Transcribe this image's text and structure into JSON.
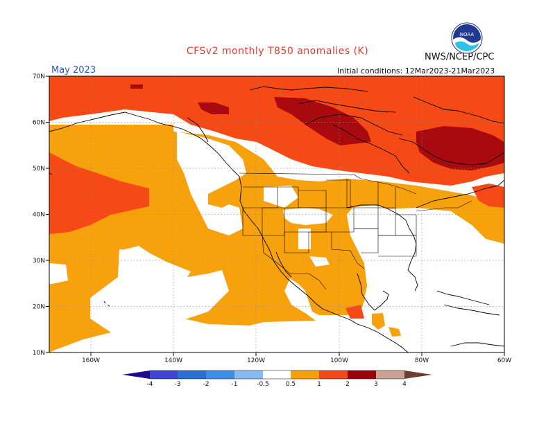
{
  "title": "CFSv2 monthly T850 anomalies (K)",
  "org": "NWS/NCEP/CPC",
  "valid_month": "May 2023",
  "initial_conditions": "Initial conditions: 12Mar2023-21Mar2023",
  "logo_text": "NOAA",
  "axes": {
    "lat_labels": [
      "70N",
      "60N",
      "50N",
      "40N",
      "30N",
      "20N",
      "10N"
    ],
    "lon_labels": [
      "160W",
      "140W",
      "120W",
      "100W",
      "80W",
      "60W"
    ],
    "lat_range": [
      10,
      70
    ],
    "lon_range": [
      -170,
      -60
    ],
    "grid": "dotted"
  },
  "colorbar": {
    "labels": [
      "-4",
      "-3",
      "-2",
      "-1",
      "-0.5",
      "0.5",
      "1",
      "2",
      "3",
      "4"
    ],
    "colors": [
      "#1f0b8c",
      "#3f44d6",
      "#2a6fd4",
      "#3a8fe6",
      "#88b9f2",
      "#ffffff",
      "#f8a00a",
      "#f4481a",
      "#c8170e",
      "#98040a",
      "#c8a295",
      "#6b4030"
    ]
  },
  "anomaly_colors": {
    "c05": "#f7a10c",
    "c1": "#f54a16",
    "c2": "#a80a0e"
  }
}
